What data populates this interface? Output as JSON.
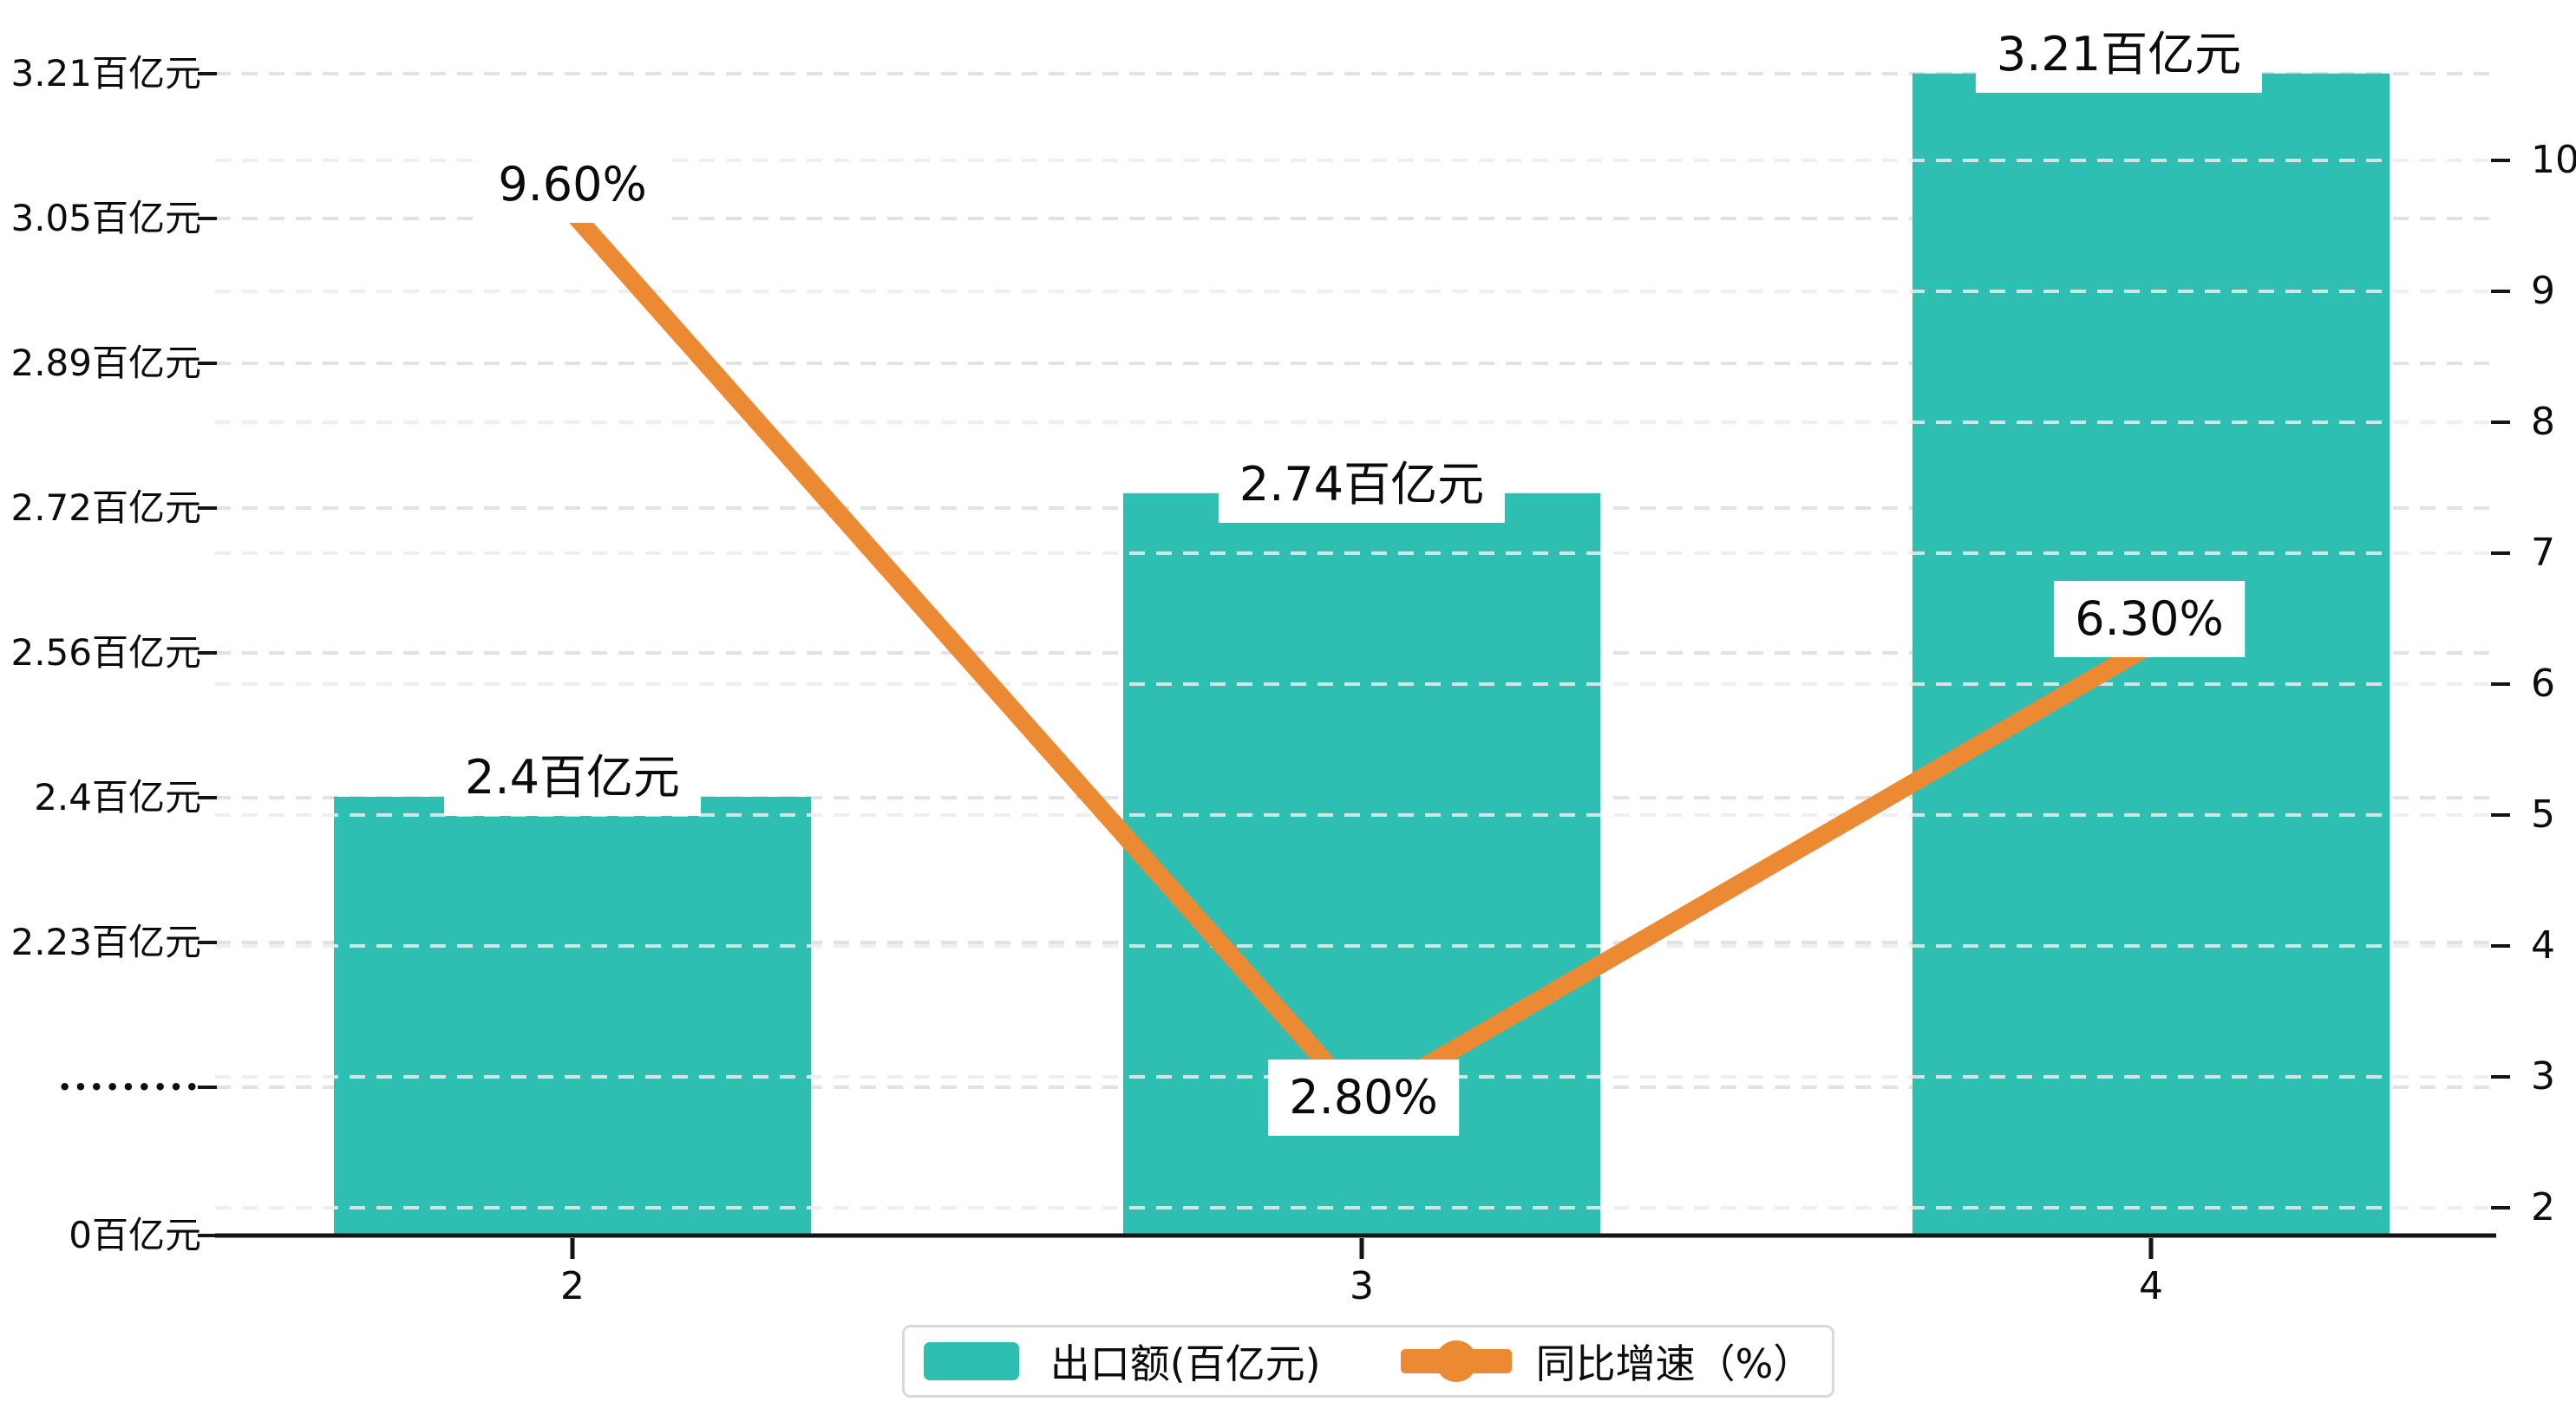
{
  "chart_data": {
    "type": "combo-bar-line-dual-axis",
    "title": "",
    "categories": [
      "2",
      "3",
      "4"
    ],
    "series": [
      {
        "name": "出口额(百亿元)",
        "type": "bar",
        "axis": "left",
        "color": "#2EBFB2",
        "values": [
          2.4,
          2.74,
          3.21
        ],
        "data_labels": [
          "2.4百亿元",
          "2.74百亿元",
          "3.21百亿元"
        ]
      },
      {
        "name": "同比增速（%）",
        "type": "line",
        "axis": "right",
        "color": "#EC8A33",
        "values": [
          9.6,
          2.8,
          6.3
        ],
        "data_labels": [
          "9.60%",
          "2.80%",
          "6.30%"
        ]
      }
    ],
    "left_axis": {
      "unit": "百亿元",
      "tick_labels": [
        "3.21百亿元",
        "3.05百亿元",
        "2.89百亿元",
        "2.72百亿元",
        "2.56百亿元",
        "2.4百亿元",
        "2.23百亿元",
        "•••••••••",
        "0百亿元"
      ],
      "range_shown": [
        2.23,
        3.21
      ],
      "axis_break": true
    },
    "right_axis": {
      "tick_labels": [
        "10",
        "9",
        "8",
        "7",
        "6",
        "5",
        "4",
        "3",
        "2"
      ],
      "range": [
        2,
        10
      ]
    },
    "x_axis": {
      "tick_labels": [
        "2",
        "3",
        "4"
      ]
    },
    "grid": "dashed horizontal, both axes",
    "legend_position": "bottom-center",
    "background": "#ffffff"
  },
  "legend": {
    "items": [
      {
        "label": "出口额(百亿元)",
        "swatch": "teal-rect"
      },
      {
        "label": "同比增速（%）",
        "swatch": "orange-line-dot"
      }
    ]
  },
  "colors": {
    "bar": "#2EBFB2",
    "line": "#EC8A33",
    "text": "#111111",
    "grid_left": "#e2e2e2",
    "grid_right": "#ededed",
    "axis_line": "#141414",
    "legend_border": "#d9d9d9",
    "label_bg": "#ffffff"
  }
}
